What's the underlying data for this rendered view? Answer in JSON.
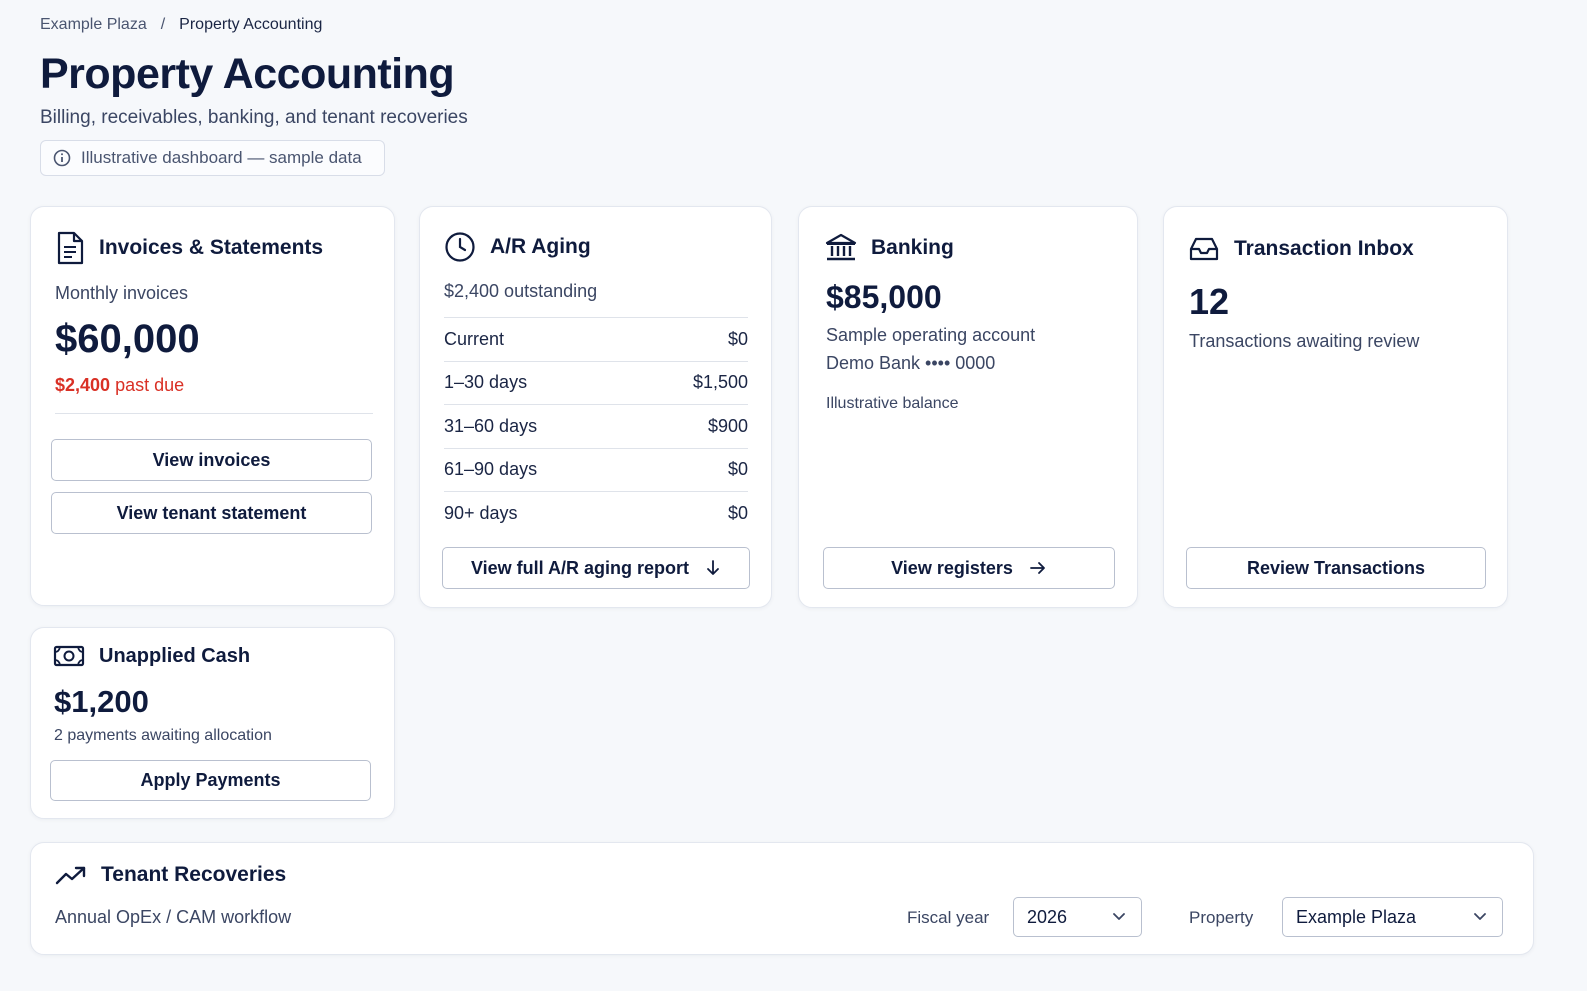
{
  "breadcrumb": {
    "parent": "Example Plaza",
    "separator": "/",
    "current": "Property Accounting"
  },
  "header": {
    "title": "Property Accounting",
    "subtitle": "Billing, receivables, banking, and tenant recoveries",
    "badge": "Illustrative dashboard — sample data"
  },
  "invoices": {
    "title": "Invoices & Statements",
    "label": "Monthly invoices",
    "amount": "$60,000",
    "past_due_amount": "$2,400",
    "past_due_label": "past due",
    "btn_invoices": "View invoices",
    "btn_statement": "View tenant statement"
  },
  "aging": {
    "title": "A/R Aging",
    "outstanding": "$2,400 outstanding",
    "rows": [
      {
        "label": "Current",
        "value": "$0"
      },
      {
        "label": "1–30 days",
        "value": "$1,500"
      },
      {
        "label": "31–60 days",
        "value": "$900"
      },
      {
        "label": "61–90 days",
        "value": "$0"
      },
      {
        "label": "90+ days",
        "value": "$0"
      }
    ],
    "btn_report": "View full A/R aging report"
  },
  "banking": {
    "title": "Banking",
    "amount": "$85,000",
    "account": "Sample operating account",
    "bank": "Demo Bank •••• 0000",
    "note": "Illustrative balance",
    "btn_registers": "View registers"
  },
  "inbox": {
    "title": "Transaction Inbox",
    "count": "12",
    "label": "Transactions awaiting review",
    "btn_review": "Review Transactions"
  },
  "unapplied": {
    "title": "Unapplied Cash",
    "amount": "$1,200",
    "label": "2 payments awaiting allocation",
    "btn_apply": "Apply Payments"
  },
  "recoveries": {
    "title": "Tenant Recoveries",
    "subtitle": "Annual OpEx / CAM workflow",
    "fiscal_label": "Fiscal year",
    "fiscal_value": "2026",
    "property_label": "Property",
    "property_value": "Example Plaza"
  },
  "colors": {
    "accent_red": "#d93025",
    "text_dark": "#0f1b3d",
    "border": "#e3e7ef"
  }
}
